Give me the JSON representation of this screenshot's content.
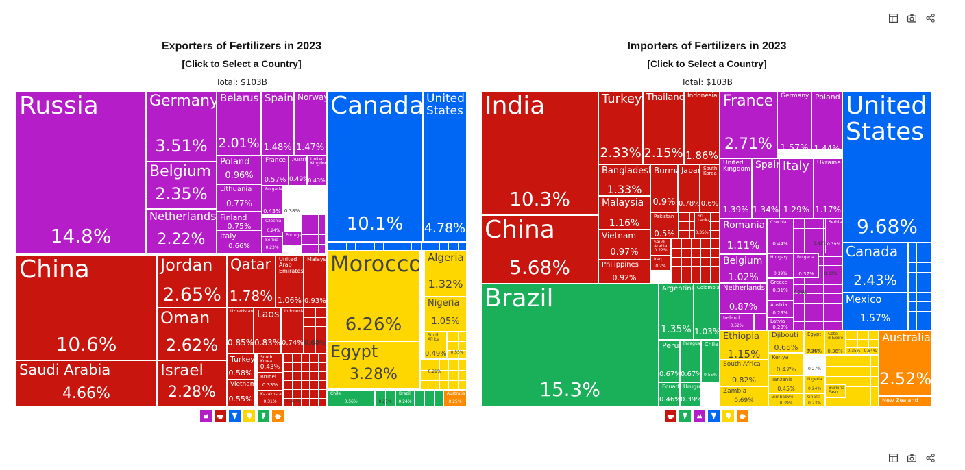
{
  "colors": {
    "europe": "#b51dc8",
    "asia": "#c8160f",
    "north_america": "#0067f5",
    "africa": "#ffd700",
    "south_america": "#1ab059",
    "oceania": "#ff8a00"
  },
  "toolbar": {
    "icons": [
      "table-icon",
      "camera-icon",
      "share-icon"
    ]
  },
  "chart_data": [
    {
      "type": "treemap",
      "title": "Exporters of Fertilizers in 2023",
      "subtitle": "[Click to Select a Country]",
      "total": "Total: $103B",
      "legend": [
        "europe",
        "asia",
        "north_america",
        "africa",
        "south_america",
        "oceania"
      ],
      "items": [
        {
          "name": "Russia",
          "value": 14.8,
          "label": "14.8%",
          "region": "europe"
        },
        {
          "name": "Germany",
          "value": 3.51,
          "label": "3.51%",
          "region": "europe"
        },
        {
          "name": "Belgium",
          "value": 2.35,
          "label": "2.35%",
          "region": "europe"
        },
        {
          "name": "Netherlands",
          "value": 2.22,
          "label": "2.22%",
          "region": "europe"
        },
        {
          "name": "Belarus",
          "value": 2.01,
          "label": "2.01%",
          "region": "europe"
        },
        {
          "name": "Spain",
          "value": 1.48,
          "label": "1.48%",
          "region": "europe"
        },
        {
          "name": "Norway",
          "value": 1.47,
          "label": "1.47%",
          "region": "europe"
        },
        {
          "name": "Poland",
          "value": 0.96,
          "label": "0.96%",
          "region": "europe"
        },
        {
          "name": "France",
          "value": 0.57,
          "label": "0.57%",
          "region": "europe"
        },
        {
          "name": "Austria",
          "value": 0.49,
          "label": "0.49%",
          "region": "europe"
        },
        {
          "name": "United Kingdom",
          "value": 0.43,
          "label": "0.43%",
          "region": "europe"
        },
        {
          "name": "Lithuania",
          "value": 0.77,
          "label": "0.77%",
          "region": "europe"
        },
        {
          "name": "Bulgaria",
          "value": 0.43,
          "label": "0.43%",
          "region": "europe"
        },
        {
          "name": "Finland",
          "value": 0.75,
          "label": "0.75%",
          "region": "europe"
        },
        {
          "name": "Czechia",
          "value": 0.24,
          "label": "0.24%",
          "region": "europe"
        },
        {
          "name": "Italy",
          "value": 0.66,
          "label": "0.66%",
          "region": "europe"
        },
        {
          "name": "Serbia",
          "value": 0.23,
          "label": "0.23%",
          "region": "europe"
        },
        {
          "name": "Portugal",
          "value": 0.2,
          "label": "",
          "region": "europe"
        },
        {
          "name": "China",
          "value": 10.6,
          "label": "10.6%",
          "region": "asia"
        },
        {
          "name": "Saudi Arabia",
          "value": 4.66,
          "label": "4.66%",
          "region": "asia"
        },
        {
          "name": "Jordan",
          "value": 2.65,
          "label": "2.65%",
          "region": "asia"
        },
        {
          "name": "Oman",
          "value": 2.62,
          "label": "2.62%",
          "region": "asia"
        },
        {
          "name": "Israel",
          "value": 2.28,
          "label": "2.28%",
          "region": "asia"
        },
        {
          "name": "Qatar",
          "value": 1.78,
          "label": "1.78%",
          "region": "asia"
        },
        {
          "name": "United Arab Emirates",
          "value": 1.06,
          "label": "1.06%",
          "region": "asia"
        },
        {
          "name": "Malaysia",
          "value": 0.93,
          "label": "0.93%",
          "region": "asia"
        },
        {
          "name": "Uzbekistan",
          "value": 0.85,
          "label": "0.85%",
          "region": "asia"
        },
        {
          "name": "Laos",
          "value": 0.83,
          "label": "0.83%",
          "region": "asia"
        },
        {
          "name": "Indonesia",
          "value": 0.74,
          "label": "0.74%",
          "region": "asia"
        },
        {
          "name": "Turkey",
          "value": 0.58,
          "label": "0.58%",
          "region": "asia"
        },
        {
          "name": "South Korea",
          "value": 0.43,
          "label": "0.43%",
          "region": "asia"
        },
        {
          "name": "Vietnam",
          "value": 0.55,
          "label": "0.55%",
          "region": "asia"
        },
        {
          "name": "Brunei",
          "value": 0.33,
          "label": "0.33%",
          "region": "asia"
        },
        {
          "name": "Kazakhstan",
          "value": 0.31,
          "label": "0.31%",
          "region": "asia"
        },
        {
          "name": "Canada",
          "value": 10.1,
          "label": "10.1%",
          "region": "north_america"
        },
        {
          "name": "United States",
          "value": 4.78,
          "label": "4.78%",
          "region": "north_america"
        },
        {
          "name": "Morocco",
          "value": 6.26,
          "label": "6.26%",
          "region": "africa"
        },
        {
          "name": "Egypt",
          "value": 3.28,
          "label": "3.28%",
          "region": "africa"
        },
        {
          "name": "Algeria",
          "value": 1.32,
          "label": "1.32%",
          "region": "africa"
        },
        {
          "name": "Nigeria",
          "value": 1.05,
          "label": "1.05%",
          "region": "africa"
        },
        {
          "name": "South Africa",
          "value": 0.49,
          "label": "0.49%",
          "region": "africa"
        },
        {
          "name": "Chile",
          "value": 0.56,
          "label": "0.56%",
          "region": "south_america"
        },
        {
          "name": "Brazil",
          "value": 0.24,
          "label": "0.24%",
          "region": "south_america"
        },
        {
          "name": "Australia",
          "value": 0.25,
          "label": "0.25%",
          "region": "oceania"
        }
      ],
      "small_labels": {
        "a": "0.68%",
        "b": "0.17%",
        "c": "0.38%",
        "d": "0.21%",
        "e": "0.55%",
        "f": "0.27%"
      }
    },
    {
      "type": "treemap",
      "title": "Importers of Fertilizers in 2023",
      "subtitle": "[Click to Select a Country]",
      "total": "Total: $103B",
      "legend": [
        "asia",
        "south_america",
        "europe",
        "north_america",
        "africa",
        "oceania"
      ],
      "items": [
        {
          "name": "India",
          "value": 10.3,
          "label": "10.3%",
          "region": "asia"
        },
        {
          "name": "China",
          "value": 5.68,
          "label": "5.68%",
          "region": "asia"
        },
        {
          "name": "Turkey",
          "value": 2.33,
          "label": "2.33%",
          "region": "asia"
        },
        {
          "name": "Thailand",
          "value": 2.15,
          "label": "2.15%",
          "region": "asia"
        },
        {
          "name": "Indonesia",
          "value": 1.86,
          "label": "1.86%",
          "region": "asia"
        },
        {
          "name": "Bangladesh",
          "value": 1.33,
          "label": "1.33%",
          "region": "asia"
        },
        {
          "name": "Burma",
          "value": 0.9,
          "label": "0.9%",
          "region": "asia"
        },
        {
          "name": "Japan",
          "value": 0.78,
          "label": "0.78%",
          "region": "asia"
        },
        {
          "name": "South Korea",
          "value": 0.6,
          "label": "0.6%",
          "region": "asia"
        },
        {
          "name": "Malaysia",
          "value": 1.16,
          "label": "1.16%",
          "region": "asia"
        },
        {
          "name": "Pakistan",
          "value": 0.5,
          "label": "0.5%",
          "region": "asia"
        },
        {
          "name": "Sri Lanka",
          "value": 0.35,
          "label": "0.35%",
          "region": "asia"
        },
        {
          "name": "Vietnam",
          "value": 0.97,
          "label": "0.97%",
          "region": "asia"
        },
        {
          "name": "Saudi Arabia",
          "value": 0.22,
          "label": "0.22%",
          "region": "asia"
        },
        {
          "name": "Iraq",
          "value": 0.2,
          "label": "0.2%",
          "region": "asia"
        },
        {
          "name": "Philippines",
          "value": 0.92,
          "label": "0.92%",
          "region": "asia"
        },
        {
          "name": "Brazil",
          "value": 15.3,
          "label": "15.3%",
          "region": "south_america"
        },
        {
          "name": "Argentina",
          "value": 1.35,
          "label": "1.35%",
          "region": "south_america"
        },
        {
          "name": "Colombia",
          "value": 1.03,
          "label": "1.03%",
          "region": "south_america"
        },
        {
          "name": "Peru",
          "value": 0.67,
          "label": "0.67%",
          "region": "south_america"
        },
        {
          "name": "Paraguay",
          "value": 0.67,
          "label": "0.67%",
          "region": "south_america"
        },
        {
          "name": "Chile",
          "value": 0.55,
          "label": "0.55%",
          "region": "south_america"
        },
        {
          "name": "Ecuador",
          "value": 0.46,
          "label": "0.46%",
          "region": "south_america"
        },
        {
          "name": "Uruguay",
          "value": 0.39,
          "label": "0.39%",
          "region": "south_america"
        },
        {
          "name": "France",
          "value": 2.71,
          "label": "2.71%",
          "region": "europe"
        },
        {
          "name": "Germany",
          "value": 1.57,
          "label": "1.57%",
          "region": "europe"
        },
        {
          "name": "Poland",
          "value": 1.44,
          "label": "1.44%",
          "region": "europe"
        },
        {
          "name": "United Kingdom",
          "value": 1.39,
          "label": "1.39%",
          "region": "europe"
        },
        {
          "name": "Spain",
          "value": 1.34,
          "label": "1.34%",
          "region": "europe"
        },
        {
          "name": "Italy",
          "value": 1.29,
          "label": "1.29%",
          "region": "europe"
        },
        {
          "name": "Ukraine",
          "value": 1.17,
          "label": "1.17%",
          "region": "europe"
        },
        {
          "name": "Romania",
          "value": 1.11,
          "label": "1.11%",
          "region": "europe"
        },
        {
          "name": "Belgium",
          "value": 1.02,
          "label": "1.02%",
          "region": "europe"
        },
        {
          "name": "Netherlands",
          "value": 0.87,
          "label": "0.87%",
          "region": "europe"
        },
        {
          "name": "Czechia",
          "value": 0.44,
          "label": "0.44%",
          "region": "europe"
        },
        {
          "name": "Serbia",
          "value": 0.39,
          "label": "0.39%",
          "region": "europe"
        },
        {
          "name": "Hungary",
          "value": 0.39,
          "label": "0.39%",
          "region": "europe"
        },
        {
          "name": "Bulgaria",
          "value": 0.37,
          "label": "0.37%",
          "region": "europe"
        },
        {
          "name": "Greece",
          "value": 0.31,
          "label": "0.31%",
          "region": "europe"
        },
        {
          "name": "Austria",
          "value": 0.29,
          "label": "0.29%",
          "region": "europe"
        },
        {
          "name": "Ireland",
          "value": 0.52,
          "label": "0.52%",
          "region": "europe"
        },
        {
          "name": "Latvia",
          "value": 0.29,
          "label": "0.29%",
          "region": "europe"
        },
        {
          "name": "United States",
          "value": 9.68,
          "label": "9.68%",
          "region": "north_america"
        },
        {
          "name": "Canada",
          "value": 2.43,
          "label": "2.43%",
          "region": "north_america"
        },
        {
          "name": "Mexico",
          "value": 1.57,
          "label": "1.57%",
          "region": "north_america"
        },
        {
          "name": "Ethiopia",
          "value": 1.15,
          "label": "1.15%",
          "region": "africa"
        },
        {
          "name": "Djibouti",
          "value": 0.65,
          "label": "0.65%",
          "region": "africa"
        },
        {
          "name": "Egypt",
          "value": 0.36,
          "label": "0.36%",
          "region": "africa"
        },
        {
          "name": "Cote d'Ivoire",
          "value": 0.36,
          "label": "0.36%",
          "region": "africa"
        },
        {
          "name": "South Africa",
          "value": 0.82,
          "label": "0.82%",
          "region": "africa"
        },
        {
          "name": "Kenya",
          "value": 0.47,
          "label": "0.47%",
          "region": "africa"
        },
        {
          "name": "Tanzania",
          "value": 0.45,
          "label": "0.45%",
          "region": "africa"
        },
        {
          "name": "Nigeria",
          "value": 0.24,
          "label": "0.24%",
          "region": "africa"
        },
        {
          "name": "Zambia",
          "value": 0.69,
          "label": "0.69%",
          "region": "africa"
        },
        {
          "name": "Zimbabwe",
          "value": 0.39,
          "label": "0.39%",
          "region": "africa"
        },
        {
          "name": "Ghana",
          "value": 0.23,
          "label": "0.23%",
          "region": "africa"
        },
        {
          "name": "Burkina Faso",
          "value": 0.2,
          "label": "",
          "region": "africa"
        },
        {
          "name": "Australia",
          "value": 2.52,
          "label": "2.52%",
          "region": "oceania"
        },
        {
          "name": "New Zealand",
          "value": 0.25,
          "label": "",
          "region": "oceania"
        }
      ],
      "small_labels": {
        "a": "0.36%",
        "b": "0.35%",
        "c": "0.54%",
        "d": "0.27%",
        "e": "0.41%",
        "f": "0.37%",
        "g": "0.28%",
        "h": "0.38%",
        "i": "0.49%",
        "j": "0.52%"
      }
    }
  ]
}
